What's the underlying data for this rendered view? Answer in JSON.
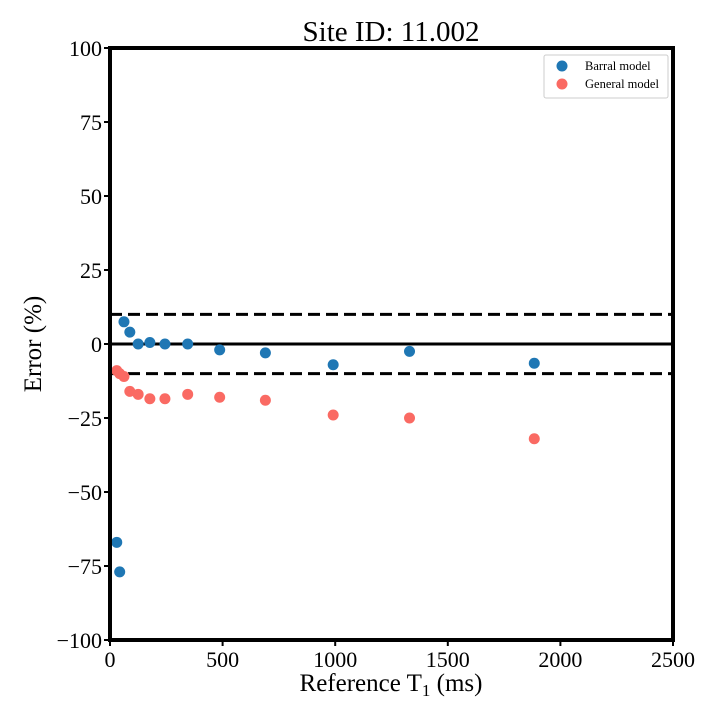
{
  "chart_data": {
    "type": "scatter",
    "title": "Site ID: 11.002",
    "xlabel": "Reference T",
    "xlabel_sub": "1",
    "xlabel_unit": " (ms)",
    "ylabel": "Error (%)",
    "xlim": [
      0,
      2500
    ],
    "ylim": [
      -100,
      100
    ],
    "xticks": [
      0,
      500,
      1000,
      1500,
      2000,
      2500
    ],
    "yticks": [
      100,
      75,
      50,
      25,
      0,
      -25,
      -50,
      -75,
      -100
    ],
    "ytick_labels": [
      "100",
      "75",
      "50",
      "25",
      "0",
      "−25",
      "−50",
      "−75",
      "−100"
    ],
    "grid": false,
    "legend_position": "top-right",
    "reference_lines": [
      {
        "y": 10,
        "style": "dashed"
      },
      {
        "y": 0,
        "style": "solid"
      },
      {
        "y": -10,
        "style": "dashed"
      }
    ],
    "series": [
      {
        "name": "Barral model",
        "color": "#1f77b4",
        "points": [
          {
            "x": 30,
            "y": -67
          },
          {
            "x": 43,
            "y": -77
          },
          {
            "x": 62,
            "y": 7.5
          },
          {
            "x": 88,
            "y": 4
          },
          {
            "x": 125,
            "y": 0
          },
          {
            "x": 177,
            "y": 0.5
          },
          {
            "x": 244,
            "y": 0
          },
          {
            "x": 345,
            "y": 0
          },
          {
            "x": 487,
            "y": -2
          },
          {
            "x": 690,
            "y": -3
          },
          {
            "x": 991,
            "y": -7
          },
          {
            "x": 1330,
            "y": -2.5
          },
          {
            "x": 1884,
            "y": -6.5
          }
        ]
      },
      {
        "name": "General model",
        "color": "#fa6a63",
        "points": [
          {
            "x": 30,
            "y": -9
          },
          {
            "x": 43,
            "y": -10
          },
          {
            "x": 62,
            "y": -11
          },
          {
            "x": 88,
            "y": -16
          },
          {
            "x": 125,
            "y": -17
          },
          {
            "x": 177,
            "y": -18.5
          },
          {
            "x": 244,
            "y": -18.5
          },
          {
            "x": 345,
            "y": -17
          },
          {
            "x": 487,
            "y": -18
          },
          {
            "x": 690,
            "y": -19
          },
          {
            "x": 991,
            "y": -24
          },
          {
            "x": 1330,
            "y": -25
          },
          {
            "x": 1884,
            "y": -32
          }
        ]
      }
    ]
  }
}
